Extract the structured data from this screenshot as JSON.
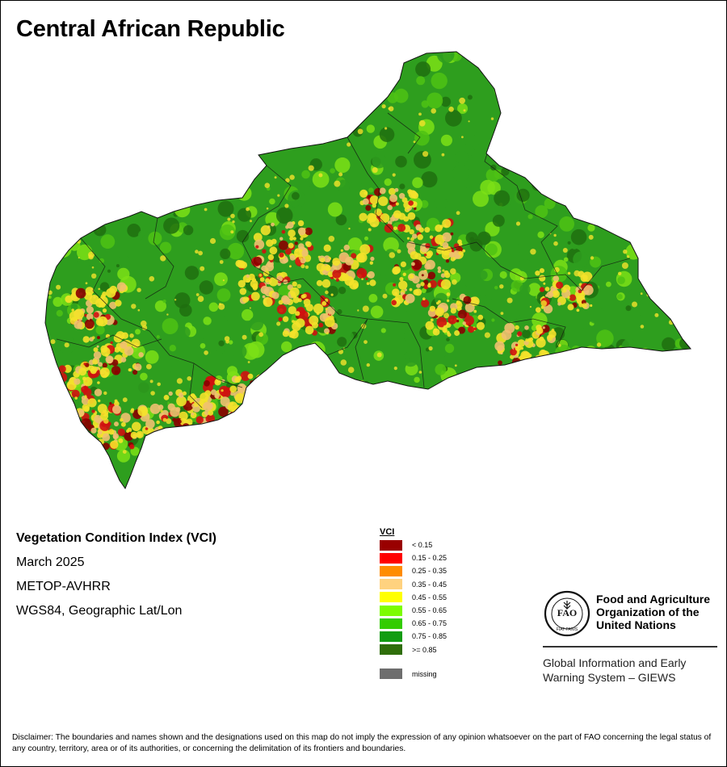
{
  "map": {
    "title": "Central African Republic",
    "colors": {
      "border": "#111111",
      "background": "#ffffff",
      "dominant_vegetation": [
        "#2e9e1e",
        "#4dc214",
        "#7be016",
        "#1f6e0f"
      ],
      "stress": [
        "#f4e22a",
        "#f0c070",
        "#d01010",
        "#8b0000"
      ]
    }
  },
  "info": {
    "index_name": "Vegetation Condition Index (VCI)",
    "date": "March 2025",
    "sensor": "METOP-AVHRR",
    "projection": "WGS84, Geographic Lat/Lon"
  },
  "legend": {
    "title": "VCI",
    "items": [
      {
        "label": "< 0.15",
        "color": "#990000"
      },
      {
        "label": "0.15 - 0.25",
        "color": "#ff0000"
      },
      {
        "label": "0.25 - 0.35",
        "color": "#ff8c00"
      },
      {
        "label": "0.35 - 0.45",
        "color": "#ffd27f"
      },
      {
        "label": "0.45 - 0.55",
        "color": "#ffff00"
      },
      {
        "label": "0.55 - 0.65",
        "color": "#7cfc00"
      },
      {
        "label": "0.65 - 0.75",
        "color": "#33cc00"
      },
      {
        "label": "0.75 - 0.85",
        "color": "#129c12"
      },
      {
        "label": ">= 0.85",
        "color": "#2f6e0a"
      }
    ],
    "missing": {
      "label": "missing",
      "color": "#6e6e6e"
    }
  },
  "fao": {
    "logo_text": "FAO",
    "logo_motto": "FIAT PANIS",
    "name_lines": [
      "Food and Agriculture",
      "Organization of the",
      "United Nations"
    ],
    "giews_lines": [
      "Global Information and Early",
      "Warning System – GIEWS"
    ]
  },
  "disclaimer": "Disclaimer: The boundaries and names shown and the designations used on this map do not imply the expression of any opinion whatsoever on the part of FAO concerning the legal status of any country, territory, area or of its authorities, or concerning the delimitation of its frontiers and boundaries."
}
